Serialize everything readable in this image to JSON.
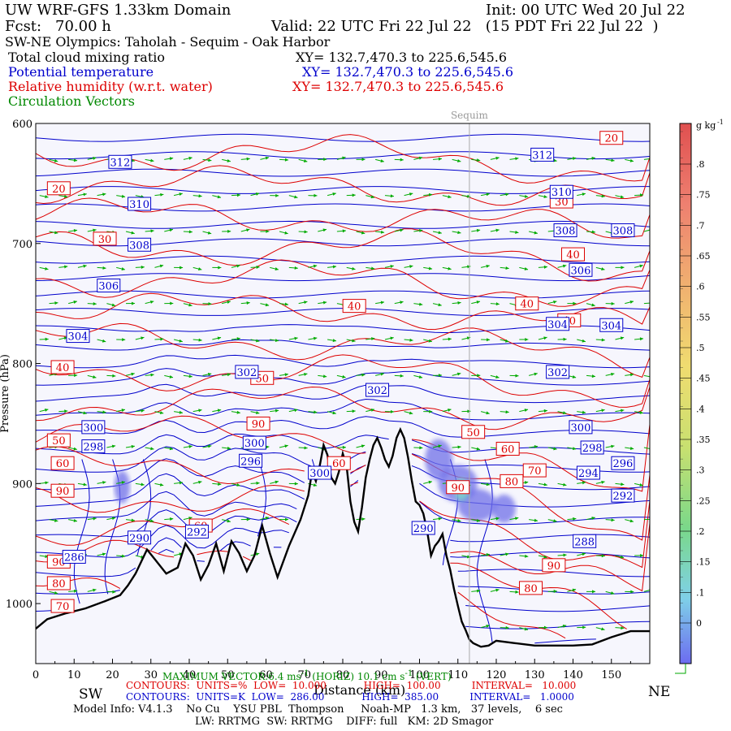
{
  "header": {
    "title": "UW WRF-GFS 1.33km Domain",
    "init": "Init: 00 UTC Wed 20 Jul 22",
    "fcst_label": "Fcst:",
    "fcst_value": "70.00 h",
    "valid": "Valid: 22 UTC Fri 22 Jul 22   (15 PDT Fri 22 Jul 22  )",
    "transect": "SW-NE Olympics: Taholah - Sequim - Oak Harbor",
    "field1": "Total cloud mixing ratio",
    "field1_xy": "XY= 132.7,470.3 to 225.6,545.6",
    "field2": "Potential temperature",
    "field2_xy": "XY= 132.7,470.3 to 225.6,545.6",
    "field3": "Relative humidity (w.r.t. water)",
    "field3_xy": "XY= 132.7,470.3 to 225.6,545.6",
    "field4": "Circulation Vectors"
  },
  "colors": {
    "theta": "#0000cc",
    "rh": "#dd0000",
    "vectors": "#00aa00",
    "terrain": "#000000",
    "plot_bg": "#f6f6fd",
    "cloud": "#6f6fe8"
  },
  "chart_data": {
    "type": "contour cross-section",
    "x_label": "Distance (km)",
    "x_ticks": [
      0,
      10,
      20,
      30,
      40,
      50,
      60,
      70,
      80,
      90,
      100,
      110,
      120,
      130,
      140,
      150
    ],
    "xlim": [
      0,
      160
    ],
    "y_label": "Pressure (hPa)",
    "y_ticks": [
      600,
      700,
      800,
      900,
      1000
    ],
    "ylim": [
      600,
      1050
    ],
    "direction_left": "SW",
    "direction_right": "NE",
    "location_marker": {
      "label": "Sequim",
      "x": 113
    },
    "terrain_profile": {
      "x": [
        0,
        3,
        8,
        13,
        18,
        22,
        24,
        26,
        29,
        31,
        34,
        37,
        39,
        41,
        43,
        45,
        47,
        49,
        51,
        53,
        55,
        57,
        59,
        61,
        63,
        66,
        69,
        71,
        72,
        73,
        74,
        75,
        76,
        77,
        78,
        79,
        80,
        81,
        82,
        83,
        84,
        85,
        86,
        87,
        88,
        89,
        90,
        91,
        92,
        93,
        94,
        95,
        96,
        97,
        98,
        99,
        100,
        101,
        102,
        103,
        104,
        105,
        106,
        107,
        108,
        109,
        110,
        111,
        112,
        113,
        114,
        116,
        118,
        120,
        125,
        130,
        135,
        140,
        145,
        150,
        155,
        160
      ],
      "p": [
        1021,
        1013,
        1008,
        1004,
        998,
        993,
        985,
        975,
        955,
        963,
        975,
        970,
        950,
        960,
        980,
        968,
        950,
        973,
        948,
        958,
        973,
        960,
        935,
        958,
        978,
        952,
        930,
        910,
        890,
        898,
        885,
        868,
        876,
        895,
        900,
        890,
        875,
        885,
        915,
        932,
        940,
        920,
        895,
        880,
        868,
        862,
        870,
        880,
        886,
        877,
        862,
        855,
        862,
        878,
        898,
        915,
        918,
        925,
        940,
        960,
        952,
        948,
        942,
        960,
        972,
        988,
        1002,
        1015,
        1022,
        1030,
        1033,
        1036,
        1035,
        1031,
        1033,
        1035,
        1035,
        1035,
        1034,
        1028,
        1023,
        1023
      ]
    },
    "theta_contours": {
      "units": "K",
      "low": "286.00",
      "high": "385.00",
      "interval": "1.0000",
      "labels": [
        {
          "text": "312",
          "x": 22,
          "p": 632
        },
        {
          "text": "312",
          "x": 132,
          "p": 626
        },
        {
          "text": "310",
          "x": 27,
          "p": 667
        },
        {
          "text": "310",
          "x": 137,
          "p": 657
        },
        {
          "text": "308",
          "x": 27,
          "p": 701
        },
        {
          "text": "308",
          "x": 138,
          "p": 689
        },
        {
          "text": "308",
          "x": 153,
          "p": 689
        },
        {
          "text": "306",
          "x": 19,
          "p": 735
        },
        {
          "text": "306",
          "x": 142,
          "p": 722
        },
        {
          "text": "304",
          "x": 11,
          "p": 777
        },
        {
          "text": "304",
          "x": 136,
          "p": 767
        },
        {
          "text": "304",
          "x": 150,
          "p": 768
        },
        {
          "text": "302",
          "x": 55,
          "p": 807
        },
        {
          "text": "302",
          "x": 89,
          "p": 822
        },
        {
          "text": "302",
          "x": 136,
          "p": 807
        },
        {
          "text": "300",
          "x": 15,
          "p": 853
        },
        {
          "text": "300",
          "x": 142,
          "p": 853
        },
        {
          "text": "300",
          "x": 57,
          "p": 866
        },
        {
          "text": "300",
          "x": 74,
          "p": 891
        },
        {
          "text": "298",
          "x": 15,
          "p": 869
        },
        {
          "text": "298",
          "x": 145,
          "p": 870
        },
        {
          "text": "296",
          "x": 56,
          "p": 881
        },
        {
          "text": "296",
          "x": 153,
          "p": 883
        },
        {
          "text": "294",
          "x": 144,
          "p": 891
        },
        {
          "text": "292",
          "x": 153,
          "p": 910
        },
        {
          "text": "292",
          "x": 42,
          "p": 940
        },
        {
          "text": "290",
          "x": 27,
          "p": 945
        },
        {
          "text": "290",
          "x": 101,
          "p": 937
        },
        {
          "text": "288",
          "x": 143,
          "p": 948
        },
        {
          "text": "286",
          "x": 10,
          "p": 961
        }
      ]
    },
    "rh_contours": {
      "units": "%",
      "low": "10.000",
      "high": "100.00",
      "interval": "10.000",
      "labels": [
        {
          "text": "20",
          "x": 150,
          "p": 612
        },
        {
          "text": "20",
          "x": 6,
          "p": 654
        },
        {
          "text": "30",
          "x": 137,
          "p": 665
        },
        {
          "text": "30",
          "x": 18,
          "p": 696
        },
        {
          "text": "40",
          "x": 140,
          "p": 709
        },
        {
          "text": "40",
          "x": 83,
          "p": 752
        },
        {
          "text": "40",
          "x": 128,
          "p": 750
        },
        {
          "text": "40",
          "x": 139,
          "p": 764
        },
        {
          "text": "40",
          "x": 7,
          "p": 803
        },
        {
          "text": "50",
          "x": 59,
          "p": 812
        },
        {
          "text": "50",
          "x": 114,
          "p": 857
        },
        {
          "text": "50",
          "x": 6,
          "p": 864
        },
        {
          "text": "60",
          "x": 79,
          "p": 883
        },
        {
          "text": "60",
          "x": 123,
          "p": 871
        },
        {
          "text": "60",
          "x": 7,
          "p": 883
        },
        {
          "text": "60",
          "x": 43,
          "p": 935
        },
        {
          "text": "70",
          "x": 130,
          "p": 889
        },
        {
          "text": "70",
          "x": 7,
          "p": 1002
        },
        {
          "text": "80",
          "x": 124,
          "p": 898
        },
        {
          "text": "80",
          "x": 6,
          "p": 983
        },
        {
          "text": "80",
          "x": 129,
          "p": 987
        },
        {
          "text": "90",
          "x": 7,
          "p": 906
        },
        {
          "text": "90",
          "x": 110,
          "p": 903
        },
        {
          "text": "90",
          "x": 6,
          "p": 965
        },
        {
          "text": "90",
          "x": 135,
          "p": 968
        },
        {
          "text": "90",
          "x": 58,
          "p": 850
        }
      ]
    },
    "cloud_regions": [
      {
        "x": 22.5,
        "p": 903,
        "w": 4,
        "h": 40
      },
      {
        "x": 105,
        "p": 880,
        "w": 7,
        "h": 50
      },
      {
        "x": 110,
        "p": 900,
        "w": 10,
        "h": 45
      },
      {
        "x": 115,
        "p": 918,
        "w": 10,
        "h": 40
      },
      {
        "x": 122,
        "p": 921,
        "w": 6,
        "h": 35
      }
    ],
    "colorbar": {
      "unit_label": "g kg",
      "unit_exp": "-1",
      "ticks": [
        ".8",
        ".75",
        ".7",
        ".65",
        ".6",
        ".55",
        ".5",
        ".45",
        ".4",
        ".35",
        ".3",
        ".25",
        ".2",
        ".15",
        ".1",
        "0"
      ]
    },
    "max_vector_text": "MAXIMUM VECTOR:6.4 ms",
    "max_vector_exp": "-1",
    "max_vector_tail": " (HORIZ) 10.1 cm s",
    "max_vector_tail_exp": "-1",
    "max_vector_end": " (VERT)"
  },
  "footer": {
    "rh_contours": "CONTOURS:  UNITS=%  LOW=  10.000            HIGH=  100.00          INTERVAL=   10.000",
    "theta_contours": "CONTOURS:  UNITS=K  LOW=  286.00            HIGH=  385.00          INTERVAL=   1.0000",
    "model_info": "Model Info: V4.1.3    No Cu    YSU PBL  Thompson     Noah-MP   1.3 km,   37 levels,    6 sec",
    "model_info2": "LW: RRTMG  SW: RRTMG    DIFF: full   KM: 2D Smagor"
  }
}
